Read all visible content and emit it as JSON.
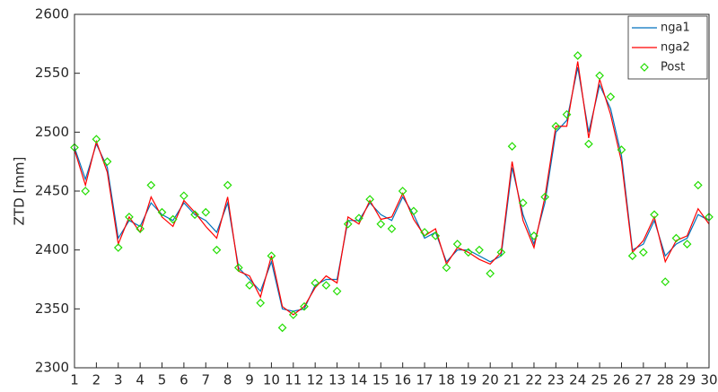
{
  "chart_data": {
    "type": "line",
    "y_label": "ZTD [mm]",
    "x": [
      1,
      1.5,
      2,
      2.5,
      3,
      3.5,
      4,
      4.5,
      5,
      5.5,
      6,
      6.5,
      7,
      7.5,
      8,
      8.5,
      9,
      9.5,
      10,
      10.5,
      11,
      11.5,
      12,
      12.5,
      13,
      13.5,
      14,
      14.5,
      15,
      15.5,
      16,
      16.5,
      17,
      17.5,
      18,
      18.5,
      19,
      19.5,
      20,
      20.5,
      21,
      21.5,
      22,
      22.5,
      23,
      23.5,
      24,
      24.5,
      25,
      25.5,
      26,
      26.5,
      27,
      27.5,
      28,
      28.5,
      29,
      29.5,
      30
    ],
    "series": [
      {
        "name": "nga1",
        "type": "line",
        "color": "#0072bd",
        "values": [
          2487,
          2460,
          2490,
          2470,
          2410,
          2425,
          2420,
          2440,
          2430,
          2425,
          2440,
          2430,
          2425,
          2415,
          2440,
          2385,
          2375,
          2365,
          2390,
          2350,
          2348,
          2350,
          2370,
          2375,
          2375,
          2425,
          2425,
          2440,
          2430,
          2425,
          2445,
          2430,
          2410,
          2415,
          2390,
          2400,
          2400,
          2395,
          2390,
          2395,
          2470,
          2430,
          2405,
          2440,
          2500,
          2510,
          2555,
          2500,
          2540,
          2520,
          2480,
          2400,
          2405,
          2425,
          2395,
          2405,
          2410,
          2430,
          2425
        ]
      },
      {
        "name": "nga2",
        "type": "line",
        "color": "#ff0000",
        "values": [
          2485,
          2455,
          2492,
          2466,
          2405,
          2428,
          2415,
          2445,
          2428,
          2420,
          2442,
          2432,
          2420,
          2410,
          2445,
          2382,
          2378,
          2360,
          2395,
          2352,
          2345,
          2352,
          2368,
          2378,
          2372,
          2428,
          2422,
          2442,
          2426,
          2428,
          2448,
          2426,
          2412,
          2418,
          2388,
          2402,
          2398,
          2392,
          2388,
          2398,
          2475,
          2425,
          2402,
          2445,
          2505,
          2505,
          2560,
          2495,
          2545,
          2515,
          2475,
          2398,
          2408,
          2428,
          2390,
          2408,
          2412,
          2435,
          2422
        ]
      },
      {
        "name": "Post",
        "type": "scatter",
        "color": "#22dd00",
        "values": [
          2487,
          2450,
          2494,
          2475,
          2402,
          2428,
          2418,
          2455,
          2432,
          2426,
          2446,
          2430,
          2432,
          2400,
          2455,
          2385,
          2370,
          2355,
          2395,
          2334,
          2345,
          2352,
          2372,
          2370,
          2365,
          2422,
          2427,
          2443,
          2422,
          2418,
          2450,
          2433,
          2415,
          2412,
          2385,
          2405,
          2398,
          2400,
          2380,
          2398,
          2488,
          2440,
          2412,
          2445,
          2505,
          2515,
          2565,
          2490,
          2548,
          2530,
          2485,
          2395,
          2398,
          2430,
          2373,
          2410,
          2405,
          2455,
          2428
        ]
      }
    ],
    "xlim": [
      1,
      30
    ],
    "xticks": [
      1,
      2,
      3,
      4,
      5,
      6,
      7,
      8,
      9,
      10,
      11,
      12,
      13,
      14,
      15,
      16,
      17,
      18,
      19,
      20,
      21,
      22,
      23,
      24,
      25,
      26,
      27,
      28,
      29,
      30
    ],
    "ylim": [
      2300,
      2600
    ],
    "yticks": [
      2300,
      2350,
      2400,
      2450,
      2500,
      2550,
      2600
    ],
    "legend": "upper right",
    "grid": false
  }
}
